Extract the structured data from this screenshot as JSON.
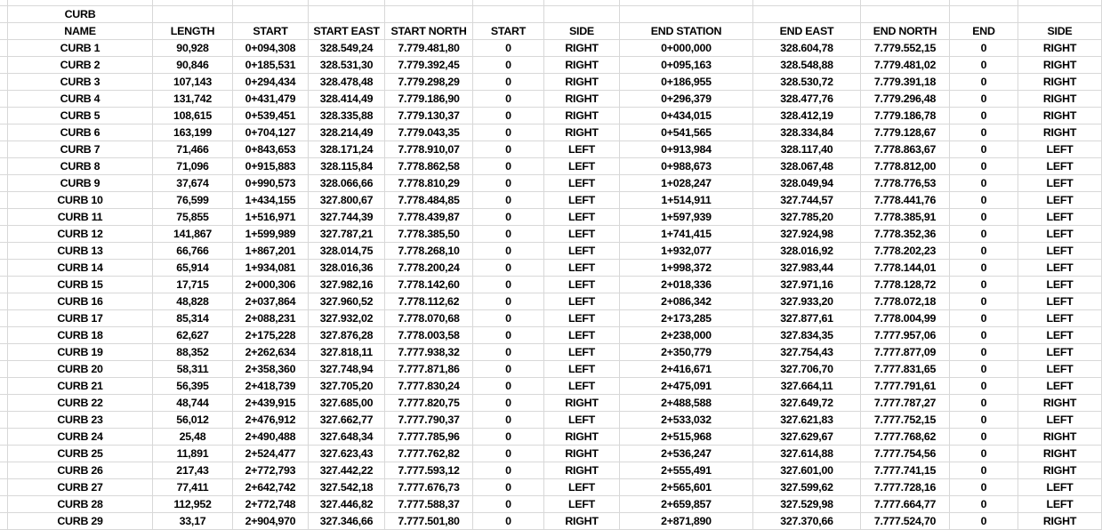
{
  "colors": {
    "background": "#ffffff",
    "gridline": "#d8d8d8",
    "text": "#000000"
  },
  "sheet": {
    "title_row": [
      "CURB",
      "",
      "",
      "",
      "",
      "",
      "",
      "",
      "",
      "",
      "",
      ""
    ],
    "header_row": [
      "NAME",
      "LENGTH",
      "START",
      "START EAST",
      "START NORTH",
      "START",
      "SIDE",
      "END STATION",
      "END EAST",
      "END NORTH",
      "END",
      "SIDE"
    ],
    "rows": [
      [
        "CURB 1",
        "90,928",
        "0+094,308",
        "328.549,24",
        "7.779.481,80",
        "0",
        "RIGHT",
        "0+000,000",
        "328.604,78",
        "7.779.552,15",
        "0",
        "RIGHT"
      ],
      [
        "CURB 2",
        "90,846",
        "0+185,531",
        "328.531,30",
        "7.779.392,45",
        "0",
        "RIGHT",
        "0+095,163",
        "328.548,88",
        "7.779.481,02",
        "0",
        "RIGHT"
      ],
      [
        "CURB 3",
        "107,143",
        "0+294,434",
        "328.478,48",
        "7.779.298,29",
        "0",
        "RIGHT",
        "0+186,955",
        "328.530,72",
        "7.779.391,18",
        "0",
        "RIGHT"
      ],
      [
        "CURB 4",
        "131,742",
        "0+431,479",
        "328.414,49",
        "7.779.186,90",
        "0",
        "RIGHT",
        "0+296,379",
        "328.477,76",
        "7.779.296,48",
        "0",
        "RIGHT"
      ],
      [
        "CURB 5",
        "108,615",
        "0+539,451",
        "328.335,88",
        "7.779.130,37",
        "0",
        "RIGHT",
        "0+434,015",
        "328.412,19",
        "7.779.186,78",
        "0",
        "RIGHT"
      ],
      [
        "CURB 6",
        "163,199",
        "0+704,127",
        "328.214,49",
        "7.779.043,35",
        "0",
        "RIGHT",
        "0+541,565",
        "328.334,84",
        "7.779.128,67",
        "0",
        "RIGHT"
      ],
      [
        "CURB 7",
        "71,466",
        "0+843,653",
        "328.171,24",
        "7.778.910,07",
        "0",
        "LEFT",
        "0+913,984",
        "328.117,40",
        "7.778.863,67",
        "0",
        "LEFT"
      ],
      [
        "CURB 8",
        "71,096",
        "0+915,883",
        "328.115,84",
        "7.778.862,58",
        "0",
        "LEFT",
        "0+988,673",
        "328.067,48",
        "7.778.812,00",
        "0",
        "LEFT"
      ],
      [
        "CURB 9",
        "37,674",
        "0+990,573",
        "328.066,66",
        "7.778.810,29",
        "0",
        "LEFT",
        "1+028,247",
        "328.049,94",
        "7.778.776,53",
        "0",
        "LEFT"
      ],
      [
        "CURB 10",
        "76,599",
        "1+434,155",
        "327.800,67",
        "7.778.484,85",
        "0",
        "LEFT",
        "1+514,911",
        "327.744,57",
        "7.778.441,76",
        "0",
        "LEFT"
      ],
      [
        "CURB 11",
        "75,855",
        "1+516,971",
        "327.744,39",
        "7.778.439,87",
        "0",
        "LEFT",
        "1+597,939",
        "327.785,20",
        "7.778.385,91",
        "0",
        "LEFT"
      ],
      [
        "CURB 12",
        "141,867",
        "1+599,989",
        "327.787,21",
        "7.778.385,50",
        "0",
        "LEFT",
        "1+741,415",
        "327.924,98",
        "7.778.352,36",
        "0",
        "LEFT"
      ],
      [
        "CURB 13",
        "66,766",
        "1+867,201",
        "328.014,75",
        "7.778.268,10",
        "0",
        "LEFT",
        "1+932,077",
        "328.016,92",
        "7.778.202,23",
        "0",
        "LEFT"
      ],
      [
        "CURB 14",
        "65,914",
        "1+934,081",
        "328.016,36",
        "7.778.200,24",
        "0",
        "LEFT",
        "1+998,372",
        "327.983,44",
        "7.778.144,01",
        "0",
        "LEFT"
      ],
      [
        "CURB 15",
        "17,715",
        "2+000,306",
        "327.982,16",
        "7.778.142,60",
        "0",
        "LEFT",
        "2+018,336",
        "327.971,16",
        "7.778.128,72",
        "0",
        "LEFT"
      ],
      [
        "CURB 16",
        "48,828",
        "2+037,864",
        "327.960,52",
        "7.778.112,62",
        "0",
        "LEFT",
        "2+086,342",
        "327.933,20",
        "7.778.072,18",
        "0",
        "LEFT"
      ],
      [
        "CURB 17",
        "85,314",
        "2+088,231",
        "327.932,02",
        "7.778.070,68",
        "0",
        "LEFT",
        "2+173,285",
        "327.877,61",
        "7.778.004,99",
        "0",
        "LEFT"
      ],
      [
        "CURB 18",
        "62,627",
        "2+175,228",
        "327.876,28",
        "7.778.003,58",
        "0",
        "LEFT",
        "2+238,000",
        "327.834,35",
        "7.777.957,06",
        "0",
        "LEFT"
      ],
      [
        "CURB 19",
        "88,352",
        "2+262,634",
        "327.818,11",
        "7.777.938,32",
        "0",
        "LEFT",
        "2+350,779",
        "327.754,43",
        "7.777.877,09",
        "0",
        "LEFT"
      ],
      [
        "CURB 20",
        "58,311",
        "2+358,360",
        "327.748,94",
        "7.777.871,86",
        "0",
        "LEFT",
        "2+416,671",
        "327.706,70",
        "7.777.831,65",
        "0",
        "LEFT"
      ],
      [
        "CURB 21",
        "56,395",
        "2+418,739",
        "327.705,20",
        "7.777.830,24",
        "0",
        "LEFT",
        "2+475,091",
        "327.664,11",
        "7.777.791,61",
        "0",
        "LEFT"
      ],
      [
        "CURB 22",
        "48,744",
        "2+439,915",
        "327.685,00",
        "7.777.820,75",
        "0",
        "RIGHT",
        "2+488,588",
        "327.649,72",
        "7.777.787,27",
        "0",
        "RIGHT"
      ],
      [
        "CURB 23",
        "56,012",
        "2+476,912",
        "327.662,77",
        "7.777.790,37",
        "0",
        "LEFT",
        "2+533,032",
        "327.621,83",
        "7.777.752,15",
        "0",
        "LEFT"
      ],
      [
        "CURB 24",
        "25,48",
        "2+490,488",
        "327.648,34",
        "7.777.785,96",
        "0",
        "RIGHT",
        "2+515,968",
        "327.629,67",
        "7.777.768,62",
        "0",
        "RIGHT"
      ],
      [
        "CURB 25",
        "11,891",
        "2+524,477",
        "327.623,43",
        "7.777.762,82",
        "0",
        "RIGHT",
        "2+536,247",
        "327.614,88",
        "7.777.754,56",
        "0",
        "RIGHT"
      ],
      [
        "CURB 26",
        "217,43",
        "2+772,793",
        "327.442,22",
        "7.777.593,12",
        "0",
        "RIGHT",
        "2+555,491",
        "327.601,00",
        "7.777.741,15",
        "0",
        "RIGHT"
      ],
      [
        "CURB 27",
        "77,411",
        "2+642,742",
        "327.542,18",
        "7.777.676,73",
        "0",
        "LEFT",
        "2+565,601",
        "327.599,62",
        "7.777.728,16",
        "0",
        "LEFT"
      ],
      [
        "CURB 28",
        "112,952",
        "2+772,748",
        "327.446,82",
        "7.777.588,37",
        "0",
        "LEFT",
        "2+659,857",
        "327.529,98",
        "7.777.664,77",
        "0",
        "LEFT"
      ],
      [
        "CURB 29",
        "33,17",
        "2+904,970",
        "327.346,66",
        "7.777.501,80",
        "0",
        "RIGHT",
        "2+871,890",
        "327.370,66",
        "7.777.524,70",
        "0",
        "RIGHT"
      ]
    ]
  }
}
